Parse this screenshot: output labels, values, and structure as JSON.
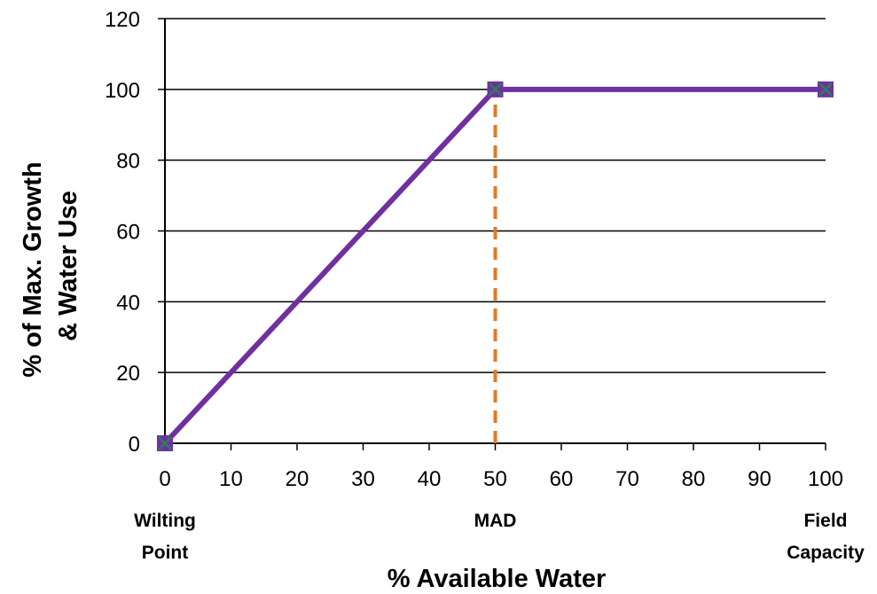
{
  "chart_data": {
    "type": "line",
    "xlabel": "% Available Water",
    "ylabel": [
      "% of Max. Growth",
      "& Water Use"
    ],
    "xlim": [
      0,
      100
    ],
    "ylim": [
      0,
      120
    ],
    "x_ticks": [
      "0",
      "10",
      "20",
      "30",
      "40",
      "50",
      "60",
      "70",
      "80",
      "90",
      "100"
    ],
    "y_ticks": [
      "0",
      "20",
      "40",
      "60",
      "80",
      "100",
      "120"
    ],
    "grid": "horizontal",
    "series": [
      {
        "x": [
          0,
          50,
          100
        ],
        "y": [
          0,
          100,
          100
        ],
        "color": "#7030A0",
        "marker": "square-x"
      }
    ],
    "vertical_line": {
      "x": 50,
      "y_from": 0,
      "y_to": 100,
      "style": "dashed",
      "color": "#E87722"
    },
    "category_labels": [
      {
        "x": 0,
        "lines": [
          "Wilting",
          "Point"
        ]
      },
      {
        "x": 50,
        "lines": [
          "MAD"
        ]
      },
      {
        "x": 100,
        "lines": [
          "Field",
          "Capacity"
        ]
      }
    ]
  }
}
